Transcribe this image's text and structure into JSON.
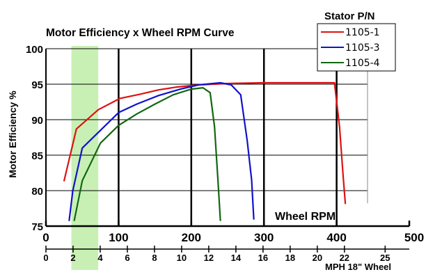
{
  "chart_data": {
    "type": "line",
    "title": "Motor Efficiency x Wheel RPM Curve",
    "xlabel": "Wheel RPM",
    "ylabel": "Motor Efficiency %",
    "x2label": "MPH 18\" Wheel",
    "xlim": [
      0,
      500
    ],
    "ylim": [
      75,
      100
    ],
    "x_ticks": [
      0,
      100,
      200,
      300,
      400,
      500
    ],
    "y_ticks": [
      75,
      80,
      85,
      90,
      95,
      100
    ],
    "y_tick_labels": [
      "75",
      "80",
      "85",
      "90",
      "95",
      "100"
    ],
    "x2_ticks": [
      0,
      2,
      4,
      6,
      8,
      10,
      12,
      14,
      16,
      18,
      20,
      22,
      25
    ],
    "x2_rpm_per_mph": 18.67,
    "legend": {
      "title": "Stator P/N",
      "position": "top-right"
    },
    "highlight_band": {
      "x": [
        35,
        72
      ],
      "color": "#c8f0b4"
    },
    "series": [
      {
        "name": "1105-1",
        "color": "#dd1111",
        "points": [
          [
            25,
            81.4
          ],
          [
            42,
            88.7
          ],
          [
            72,
            91.4
          ],
          [
            102,
            93.0
          ],
          [
            130,
            93.6
          ],
          [
            155,
            94.2
          ],
          [
            180,
            94.6
          ],
          [
            210,
            94.9
          ],
          [
            250,
            95.1
          ],
          [
            300,
            95.2
          ],
          [
            350,
            95.2
          ],
          [
            397,
            95.2
          ],
          [
            404,
            89.0
          ],
          [
            409,
            82.0
          ],
          [
            412,
            78.2
          ]
        ]
      },
      {
        "name": "1105-3",
        "color": "#1111cc",
        "points": [
          [
            32,
            75.8
          ],
          [
            37,
            80.0
          ],
          [
            50,
            86.0
          ],
          [
            75,
            88.5
          ],
          [
            100,
            91.0
          ],
          [
            125,
            92.2
          ],
          [
            155,
            93.4
          ],
          [
            185,
            94.3
          ],
          [
            210,
            94.9
          ],
          [
            240,
            95.2
          ],
          [
            255,
            94.9
          ],
          [
            268,
            93.5
          ],
          [
            277,
            87.0
          ],
          [
            283,
            81.5
          ],
          [
            286,
            76.0
          ]
        ]
      },
      {
        "name": "1105-4",
        "color": "#116611",
        "points": [
          [
            39,
            75.8
          ],
          [
            50,
            81.4
          ],
          [
            75,
            86.7
          ],
          [
            100,
            89.2
          ],
          [
            125,
            90.8
          ],
          [
            150,
            92.2
          ],
          [
            175,
            93.5
          ],
          [
            200,
            94.3
          ],
          [
            216,
            94.5
          ],
          [
            226,
            93.8
          ],
          [
            232,
            89.0
          ],
          [
            237,
            81.0
          ],
          [
            240,
            75.8
          ]
        ]
      }
    ]
  }
}
